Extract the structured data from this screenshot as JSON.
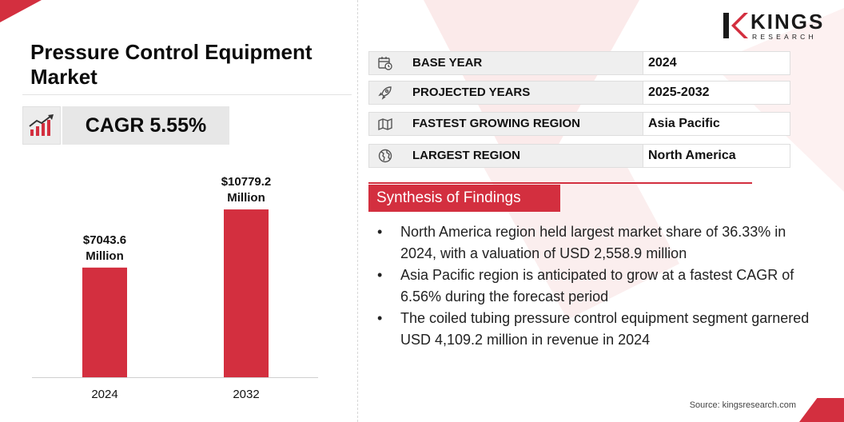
{
  "title": "Pressure Control Equipment Market",
  "cagr_text": "CAGR 5.55%",
  "logo": {
    "name": "KINGS",
    "sub": "RESEARCH"
  },
  "info": [
    {
      "icon": "calendar-icon",
      "label": "BASE YEAR",
      "value": "2024"
    },
    {
      "icon": "rocket-icon",
      "label": "PROJECTED YEARS",
      "value": "2025-2032"
    },
    {
      "icon": "map-icon",
      "label": "FASTEST GROWING REGION",
      "value": "Asia Pacific"
    },
    {
      "icon": "globe-icon",
      "label": "LARGEST REGION",
      "value": "North America"
    }
  ],
  "synthesis_title": "Synthesis of Findings",
  "findings": [
    "North America region held largest market share of 36.33% in 2024, with a valuation of USD 2,558.9 million",
    "Asia Pacific region is anticipated to grow at a fastest CAGR of 6.56% during the forecast period",
    "The coiled tubing pressure control equipment segment garnered USD 4,109.2 million in revenue in 2024"
  ],
  "source": "Source: kingsresearch.com",
  "colors": {
    "accent": "#d32f3f",
    "bar": "#d32f3f",
    "panel": "#efefef"
  },
  "chart_data": {
    "type": "bar",
    "categories": [
      "2024",
      "2032"
    ],
    "values": [
      7043.6,
      10779.2
    ],
    "data_labels": [
      "$7043.6 Million",
      "$10779.2 Million"
    ],
    "title": "",
    "xlabel": "",
    "ylabel": "",
    "ylim": [
      0,
      11500
    ]
  }
}
